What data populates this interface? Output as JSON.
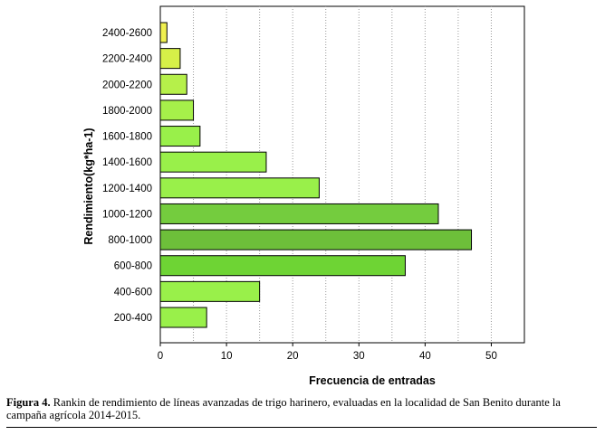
{
  "chart_data": {
    "type": "bar",
    "orientation": "horizontal",
    "categories": [
      "200-400",
      "400-600",
      "600-800",
      "800-1000",
      "1000-1200",
      "1200-1400",
      "1400-1600",
      "1600-1800",
      "1800-2000",
      "2000-2200",
      "2200-2400",
      "2400-2600"
    ],
    "values": [
      7,
      15,
      37,
      47,
      42,
      24,
      16,
      6,
      5,
      4,
      3,
      1
    ],
    "colors": [
      "#99f04a",
      "#99f04a",
      "#6ed434",
      "#6dbf3a",
      "#74cc3e",
      "#99f04a",
      "#99f04a",
      "#99f04a",
      "#a6f04a",
      "#b6f04a",
      "#d6f048",
      "#f0f050"
    ],
    "xlabel": "Frecuencia  de entradas",
    "ylabel": "Rendimiento(kg*ha-1)",
    "xlim": [
      0,
      55
    ],
    "xticks": [
      0,
      10,
      20,
      30,
      40,
      50
    ],
    "grid": "vertical-dotted"
  },
  "caption": {
    "label": "Figura 4.",
    "text": " Rankin de rendimiento de líneas avanzadas de trigo harinero, evaluadas en la localidad de San Benito durante la campaña agrícola 2014-2015."
  }
}
